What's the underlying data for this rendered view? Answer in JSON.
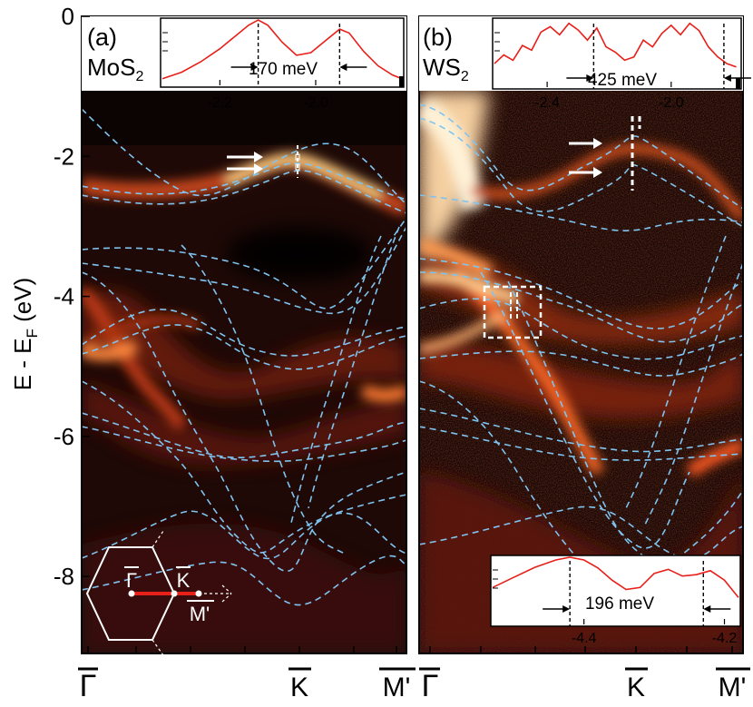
{
  "chart_data": {
    "type": "heatmap",
    "description_units": "energy in eV, momentum along path",
    "y_axis": {
      "label": "E - E",
      "label_sub": "F",
      "label_unit": " (eV)",
      "ylim": [
        -9.1,
        0
      ],
      "ticks": [
        0,
        -2,
        -4,
        -6,
        -8
      ],
      "tick_labels": [
        "0",
        "-2",
        "-4",
        "-6",
        "-8"
      ]
    },
    "x_axis": {
      "tick_labels": [
        "Γ",
        "K",
        "M'"
      ]
    },
    "colors": {
      "band_dash": "#7fc4f0",
      "inset_line": "#e8201a",
      "bz_path": "#e8201a",
      "arrow_marker": "#ffffff"
    },
    "panels": [
      {
        "id": "a",
        "panel_label": "(a)",
        "material": "MoS",
        "material_sub": "2",
        "splitting_arrows_energies_eV": [
          -2.0,
          -2.15
        ],
        "top_inset": {
          "x_ticks": [
            -2.2,
            -2.0
          ],
          "x_tick_labels": [
            "-2.2",
            "-2.0"
          ],
          "xlim": [
            -2.32,
            -1.82
          ],
          "splitting_label": "170 meV",
          "peaks_eV": [
            -2.12,
            -1.95
          ],
          "profile_x": [
            -2.32,
            -2.28,
            -2.24,
            -2.2,
            -2.17,
            -2.14,
            -2.12,
            -2.1,
            -2.07,
            -2.04,
            -2.01,
            -1.98,
            -1.95,
            -1.93,
            -1.9,
            -1.87,
            -1.84,
            -1.82
          ],
          "profile_y": [
            0.1,
            0.2,
            0.36,
            0.56,
            0.74,
            0.92,
            1.0,
            0.92,
            0.66,
            0.46,
            0.5,
            0.68,
            0.86,
            0.8,
            0.52,
            0.3,
            0.16,
            0.1
          ]
        },
        "bz_inset": {
          "labels": [
            "Γ",
            "K",
            "M'"
          ]
        }
      },
      {
        "id": "b",
        "panel_label": "(b)",
        "material": "WS",
        "material_sub": "2",
        "splitting_arrows_energies_eV": [
          -1.85,
          -2.25
        ],
        "top_inset": {
          "x_ticks": [
            -2.4,
            -2.0
          ],
          "x_tick_labels": [
            "-2.4",
            "-2.0"
          ],
          "xlim": [
            -2.57,
            -1.78
          ],
          "splitting_label": "425 meV",
          "peaks_eV": [
            -2.25,
            -1.83
          ],
          "profile_x": [
            -2.57,
            -2.54,
            -2.51,
            -2.48,
            -2.45,
            -2.42,
            -2.39,
            -2.36,
            -2.33,
            -2.3,
            -2.27,
            -2.24,
            -2.21,
            -2.18,
            -2.15,
            -2.12,
            -2.09,
            -2.06,
            -2.03,
            -2.0,
            -1.97,
            -1.94,
            -1.91,
            -1.88,
            -1.85,
            -1.82,
            -1.79
          ],
          "profile_y": [
            0.35,
            0.48,
            0.4,
            0.62,
            0.55,
            0.82,
            0.9,
            0.78,
            0.95,
            0.85,
            0.7,
            0.88,
            0.6,
            0.52,
            0.4,
            0.45,
            0.7,
            0.6,
            0.8,
            0.92,
            0.78,
            0.95,
            0.84,
            0.6,
            0.45,
            0.35,
            0.3
          ]
        },
        "bottom_inset": {
          "x_ticks": [
            -4.4,
            -4.2
          ],
          "x_tick_labels": [
            "-4.4",
            "-4.2"
          ],
          "xlim": [
            -4.53,
            -4.18
          ],
          "splitting_label": "196 meV",
          "peaks_eV": [
            -4.42,
            -4.23
          ],
          "profile_x": [
            -4.53,
            -4.5,
            -4.47,
            -4.44,
            -4.42,
            -4.4,
            -4.38,
            -4.36,
            -4.34,
            -4.32,
            -4.3,
            -4.28,
            -4.26,
            -4.24,
            -4.22,
            -4.2,
            -4.18
          ],
          "profile_y": [
            0.55,
            0.7,
            0.85,
            0.96,
            1.0,
            0.96,
            0.84,
            0.66,
            0.52,
            0.55,
            0.76,
            0.82,
            0.72,
            0.74,
            0.8,
            0.66,
            0.4
          ]
        }
      }
    ]
  }
}
